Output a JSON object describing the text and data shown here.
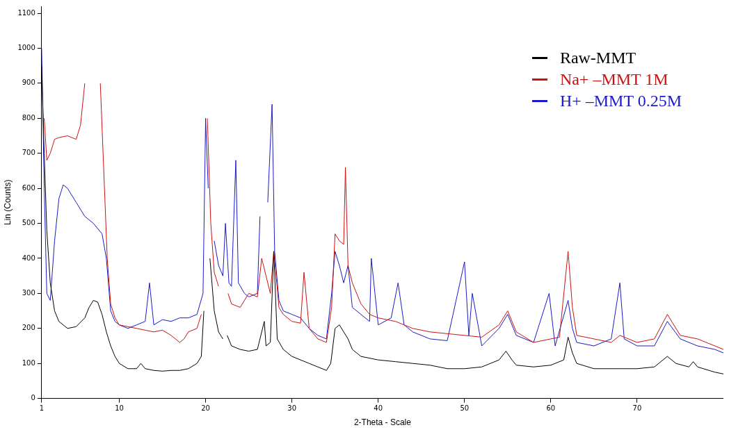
{
  "chart_data": {
    "type": "line",
    "xlabel": "2-Theta - Scale",
    "ylabel": "Lin (Counts)",
    "xlim": [
      1,
      80
    ],
    "ylim": [
      0,
      1120
    ],
    "xticks": [
      1,
      10,
      20,
      30,
      40,
      50,
      60,
      70
    ],
    "yticks": [
      0,
      100,
      200,
      300,
      400,
      500,
      600,
      700,
      800,
      900,
      1000,
      1100
    ],
    "legend": "top right",
    "series": [
      {
        "name": "Raw-MMT",
        "color": "#000000",
        "x": [
          1,
          1.3,
          1.6,
          2,
          2.5,
          3,
          4,
          5,
          6,
          6.5,
          7,
          7.5,
          8,
          8.5,
          9,
          9.5,
          10,
          11,
          12,
          12.5,
          13,
          14,
          15,
          16,
          17,
          18,
          19,
          19.5,
          19.8,
          20,
          20.5,
          21,
          21.5,
          22,
          22.2,
          22.5,
          23,
          24,
          25,
          26,
          26.8,
          27,
          27.5,
          27.9,
          28.3,
          29,
          30,
          31,
          32,
          33,
          34,
          34.5,
          35,
          35.5,
          36,
          36.5,
          37,
          38,
          40,
          42,
          44,
          46,
          48,
          50,
          52,
          54,
          54.8,
          55.5,
          56,
          58,
          60,
          61.5,
          62,
          62.5,
          63,
          65,
          68,
          70,
          72,
          73.5,
          74.5,
          76,
          76.5,
          77,
          79,
          80
        ],
        "values": [
          950,
          700,
          480,
          330,
          250,
          220,
          200,
          205,
          230,
          260,
          280,
          275,
          240,
          190,
          150,
          120,
          100,
          85,
          85,
          100,
          85,
          80,
          78,
          80,
          80,
          85,
          100,
          120,
          250,
          null,
          400,
          250,
          190,
          170,
          null,
          180,
          150,
          140,
          135,
          140,
          220,
          150,
          160,
          420,
          170,
          140,
          120,
          110,
          100,
          90,
          80,
          100,
          200,
          210,
          190,
          170,
          140,
          120,
          110,
          105,
          100,
          95,
          85,
          85,
          90,
          110,
          135,
          110,
          95,
          90,
          95,
          110,
          175,
          130,
          100,
          85,
          85,
          85,
          90,
          120,
          100,
          90,
          105,
          90,
          75,
          70
        ]
      },
      {
        "name": "Na+ –MMT 1M",
        "color": "#cc1111",
        "x": [
          1.3,
          1.6,
          2,
          2.5,
          3,
          4,
          5,
          5.5,
          6,
          6.5,
          7.3,
          7.8,
          8.2,
          8.6,
          9,
          9.5,
          10,
          11,
          12,
          13,
          14,
          15,
          16,
          17,
          17.5,
          18,
          19,
          19.5,
          19.8,
          20.2,
          20.6,
          21,
          21.5,
          21.9,
          22.3,
          22.6,
          23,
          24,
          25,
          26,
          26.5,
          27,
          27.5,
          27.9,
          28.5,
          29,
          30,
          31,
          31.4,
          32,
          33,
          34,
          34.6,
          35,
          35.5,
          36,
          36.2,
          36.5,
          37,
          38,
          39,
          40,
          42,
          44,
          46,
          48,
          50,
          52,
          54,
          55,
          56,
          58,
          60,
          61,
          62,
          62.5,
          63,
          65,
          67,
          68,
          70,
          72,
          73.5,
          75,
          77,
          79,
          80
        ],
        "values": [
          800,
          680,
          700,
          740,
          745,
          750,
          740,
          780,
          900,
          null,
          null,
          900,
          650,
          400,
          270,
          230,
          210,
          205,
          200,
          195,
          190,
          195,
          180,
          160,
          170,
          190,
          200,
          240,
          null,
          800,
          500,
          360,
          320,
          null,
          null,
          300,
          270,
          260,
          300,
          290,
          400,
          350,
          300,
          420,
          260,
          240,
          220,
          215,
          360,
          200,
          170,
          160,
          260,
          470,
          450,
          440,
          660,
          380,
          330,
          270,
          240,
          230,
          220,
          200,
          190,
          185,
          180,
          175,
          210,
          250,
          190,
          160,
          170,
          175,
          420,
          260,
          180,
          170,
          160,
          180,
          160,
          170,
          240,
          180,
          170,
          150,
          140
        ]
      },
      {
        "name": "H+ –MMT 0.25M",
        "color": "#1a1acc",
        "x": [
          1,
          1.3,
          1.6,
          2,
          2.5,
          3,
          3.5,
          4,
          5,
          6,
          7,
          8,
          8.5,
          9,
          9.5,
          10,
          11,
          12,
          13,
          13.5,
          14,
          15,
          16,
          17,
          18,
          19,
          19.7,
          20,
          20.3,
          20.7,
          21,
          21.5,
          22,
          22.3,
          22.7,
          23,
          23.5,
          23.8,
          24.5,
          25,
          26,
          26.3,
          26.6,
          26.9,
          27.2,
          27.7,
          28,
          28.5,
          29,
          30,
          31,
          32,
          33,
          34,
          34.6,
          35,
          35.5,
          36,
          36.5,
          37,
          38,
          39,
          39.2,
          40,
          41.5,
          42.3,
          43,
          44,
          46,
          48,
          50,
          50.5,
          50.9,
          52,
          54,
          55,
          56,
          58,
          59.8,
          60.5,
          62,
          62.5,
          63,
          65,
          67,
          68,
          68.5,
          70,
          72,
          73.5,
          75,
          77,
          79,
          80
        ],
        "values": [
          1000,
          600,
          300,
          280,
          450,
          570,
          610,
          600,
          560,
          520,
          500,
          470,
          400,
          250,
          220,
          210,
          200,
          210,
          220,
          330,
          210,
          225,
          220,
          230,
          230,
          240,
          300,
          800,
          600,
          null,
          450,
          380,
          350,
          500,
          330,
          320,
          680,
          330,
          300,
          290,
          300,
          520,
          null,
          null,
          560,
          840,
          420,
          280,
          250,
          240,
          230,
          200,
          180,
          170,
          300,
          420,
          380,
          330,
          380,
          260,
          240,
          220,
          400,
          210,
          230,
          330,
          210,
          190,
          170,
          165,
          390,
          180,
          300,
          150,
          200,
          240,
          180,
          160,
          300,
          150,
          280,
          200,
          160,
          150,
          170,
          330,
          170,
          150,
          150,
          220,
          170,
          150,
          140,
          130
        ]
      }
    ]
  }
}
